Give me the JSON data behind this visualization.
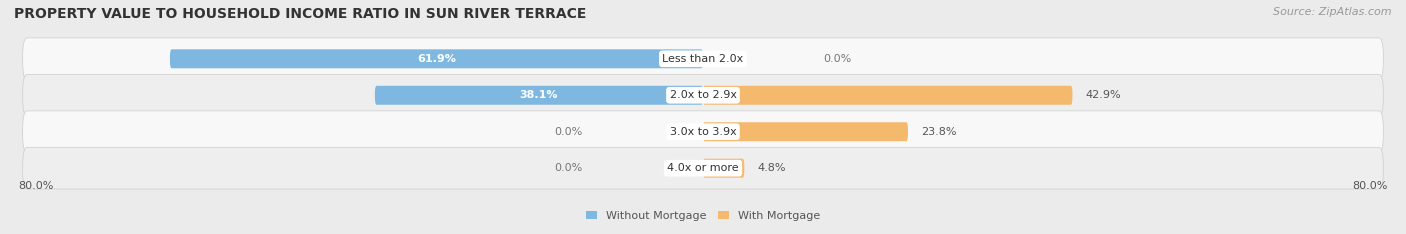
{
  "title": "PROPERTY VALUE TO HOUSEHOLD INCOME RATIO IN SUN RIVER TERRACE",
  "source": "Source: ZipAtlas.com",
  "categories": [
    "Less than 2.0x",
    "2.0x to 2.9x",
    "3.0x to 3.9x",
    "4.0x or more"
  ],
  "without_mortgage": [
    61.9,
    38.1,
    0.0,
    0.0
  ],
  "with_mortgage": [
    0.0,
    42.9,
    23.8,
    4.8
  ],
  "xlim": [
    -80.0,
    80.0
  ],
  "x_left_label": "80.0%",
  "x_right_label": "80.0%",
  "color_without": "#7eb8e0",
  "color_with": "#f5b96e",
  "color_without_light": "#b8d8ef",
  "color_with_light": "#f8d8b0",
  "bg_color": "#ebebeb",
  "row_colors": [
    "#f8f8f8",
    "#eeeeee",
    "#f8f8f8",
    "#eeeeee"
  ],
  "bar_height": 0.52,
  "title_fontsize": 10,
  "source_fontsize": 8,
  "label_fontsize": 8,
  "category_fontsize": 8,
  "tick_fontsize": 8,
  "legend_fontsize": 8
}
